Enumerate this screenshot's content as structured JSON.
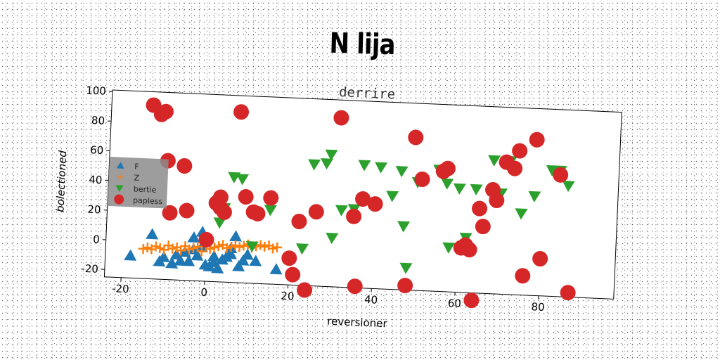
{
  "title": "N lija",
  "chart_data": {
    "type": "scatter",
    "title": "derrire",
    "xlabel": "reversioner",
    "ylabel": "bolectioned",
    "xlim": [
      -24,
      98
    ],
    "ylim": [
      -25,
      101
    ],
    "xticks": [
      -20,
      0,
      20,
      40,
      60,
      80
    ],
    "yticks": [
      -20,
      0,
      20,
      40,
      60,
      80,
      100
    ],
    "grid": false,
    "legend_position": "center-left",
    "series": [
      {
        "name": "F",
        "marker": "triangle-up",
        "color": "#1f77b4",
        "x": [
          -18,
          -13,
          -11,
          -10,
          -8,
          -7,
          -6,
          -5,
          -4,
          -3,
          -2,
          -1,
          0,
          1,
          2,
          3,
          4,
          5,
          6,
          7,
          8,
          9,
          10,
          12,
          17,
          -3,
          -1,
          2,
          6
        ],
        "y": [
          -10,
          5,
          -13,
          -10,
          -14,
          -8,
          -12,
          -6,
          -12,
          4,
          -8,
          8,
          -14,
          -15,
          -12,
          -16,
          -10,
          -8,
          -6,
          6,
          -14,
          -10,
          -6,
          -10,
          -15,
          -4,
          -2,
          -8,
          -2
        ]
      },
      {
        "name": "Z",
        "marker": "plus",
        "color": "#ff7f0e",
        "x": [
          -15,
          -14,
          -13,
          -12,
          -11,
          -10,
          -9,
          -8,
          -7,
          -6,
          -5,
          -4,
          -3,
          -2,
          -1,
          0,
          1,
          2,
          3,
          4,
          5,
          6,
          7,
          8,
          9,
          10,
          11,
          12,
          13,
          14,
          15,
          16,
          17
        ],
        "y": [
          -5,
          -4,
          -5,
          -3,
          -4,
          -5,
          -2,
          -4,
          -3,
          -5,
          -2,
          -4,
          -3,
          -2,
          -5,
          -1,
          -3,
          -2,
          -1,
          0,
          -2,
          -1,
          0,
          -1,
          0,
          1,
          -1,
          0,
          1,
          0,
          1,
          -1,
          0
        ]
      },
      {
        "name": "bertie",
        "marker": "triangle-down",
        "color": "#2ca02c",
        "x": [
          3,
          4,
          6,
          8,
          11,
          15,
          23,
          25,
          28,
          29,
          30,
          32,
          35,
          37,
          41,
          44,
          46,
          47,
          48,
          50,
          55,
          57,
          58,
          60,
          62,
          64,
          66,
          68,
          70,
          72,
          75,
          78,
          82,
          84,
          86
        ],
        "y": [
          15,
          25,
          46,
          45,
          0,
          25,
          0,
          57,
          58,
          64,
          8,
          27,
          28,
          58,
          57,
          38,
          55,
          18,
          -10,
          48,
          57,
          48,
          5,
          45,
          12,
          45,
          20,
          65,
          43,
          65,
          30,
          42,
          60,
          60,
          50
        ]
      },
      {
        "name": "papless",
        "marker": "circle",
        "color": "#d62728",
        "x": [
          -14,
          -12,
          -11,
          -10,
          -9,
          -6,
          -5,
          0,
          2,
          3,
          3,
          4,
          7,
          9,
          11,
          12,
          15,
          20,
          21,
          22,
          24,
          26,
          31,
          35,
          36,
          37,
          40,
          48,
          49,
          51,
          56,
          57,
          61,
          62,
          63,
          64,
          65,
          66,
          68,
          69,
          71,
          73,
          74,
          76,
          78,
          80,
          84,
          87
        ],
        "y": [
          92,
          86,
          88,
          55,
          20,
          52,
          22,
          3,
          28,
          32,
          25,
          22,
          90,
          33,
          23,
          22,
          33,
          -7,
          -18,
          18,
          -28,
          25,
          89,
          23,
          -24,
          35,
          32,
          -22,
          78,
          50,
          56,
          58,
          5,
          7,
          4,
          -30,
          32,
          20,
          45,
          38,
          64,
          60,
          72,
          -12,
          80,
          0,
          57,
          -22
        ]
      }
    ]
  }
}
